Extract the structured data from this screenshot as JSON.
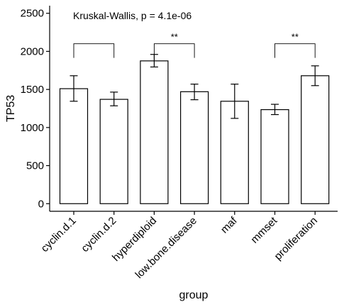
{
  "chart_data": {
    "type": "bar",
    "title": "",
    "annotation": "Kruskal-Wallis, p = 4.1e-06",
    "xlabel": "group",
    "ylabel": "TP53",
    "ylim": [
      -100,
      2600
    ],
    "yticks": [
      0,
      500,
      1000,
      1500,
      2000,
      2500
    ],
    "categories": [
      "cyclin.d.1",
      "cyclin.d.2",
      "hyperdiploid",
      "low.bone.disease",
      "maf",
      "mmset",
      "proliferation"
    ],
    "values": [
      1510,
      1370,
      1875,
      1470,
      1345,
      1235,
      1680
    ],
    "error_low": [
      1345,
      1285,
      1795,
      1365,
      1120,
      1170,
      1550
    ],
    "error_high": [
      1680,
      1465,
      1960,
      1570,
      1570,
      1305,
      1810
    ],
    "comparisons": [
      {
        "from": "cyclin.d.1",
        "to": "cyclin.d.2",
        "label": "",
        "y": 2100
      },
      {
        "from": "hyperdiploid",
        "to": "low.bone.disease",
        "label": "**",
        "y": 2100
      },
      {
        "from": "mmset",
        "to": "proliferation",
        "label": "**",
        "y": 2100
      }
    ],
    "grid": false,
    "legend": "none"
  }
}
